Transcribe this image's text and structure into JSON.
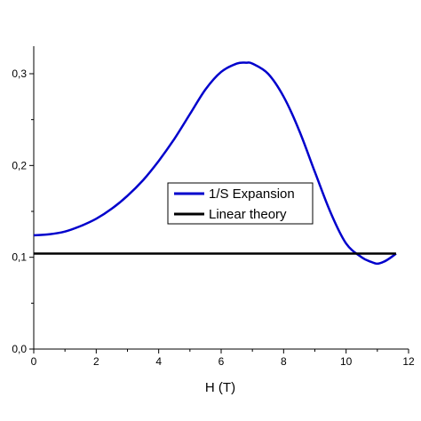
{
  "chart_data": {
    "type": "line",
    "title": "",
    "xlabel": "H (T)",
    "ylabel": "",
    "xlim": [
      0,
      12
    ],
    "ylim": [
      0,
      0.33
    ],
    "x_ticks": [
      0,
      2,
      4,
      6,
      8,
      10,
      12
    ],
    "x_tick_labels": [
      "0",
      "2",
      "4",
      "6",
      "8",
      "10",
      "12"
    ],
    "y_ticks": [
      0,
      0.1,
      0.2,
      0.3
    ],
    "y_tick_labels": [
      "0,0",
      "0,1",
      "0,2",
      "0,3"
    ],
    "grid": false,
    "legend_position": "center",
    "series": [
      {
        "name": "1/S Expansion",
        "color": "#0000cc",
        "x": [
          0,
          0.5,
          1,
          1.5,
          2,
          2.5,
          3,
          3.5,
          4,
          4.5,
          5,
          5.5,
          6,
          6.5,
          6.8,
          7,
          7.5,
          8,
          8.5,
          9,
          9.5,
          10,
          10.5,
          10.8,
          11,
          11.2,
          11.4,
          11.6
        ],
        "y": [
          0.124,
          0.125,
          0.128,
          0.134,
          0.142,
          0.153,
          0.167,
          0.184,
          0.205,
          0.229,
          0.256,
          0.283,
          0.302,
          0.311,
          0.312,
          0.311,
          0.3,
          0.275,
          0.238,
          0.193,
          0.149,
          0.115,
          0.1,
          0.095,
          0.093,
          0.095,
          0.099,
          0.104
        ]
      },
      {
        "name": "Linear theory",
        "color": "#000000",
        "x": [
          0,
          11.6
        ],
        "y": [
          0.104,
          0.104
        ]
      }
    ]
  }
}
